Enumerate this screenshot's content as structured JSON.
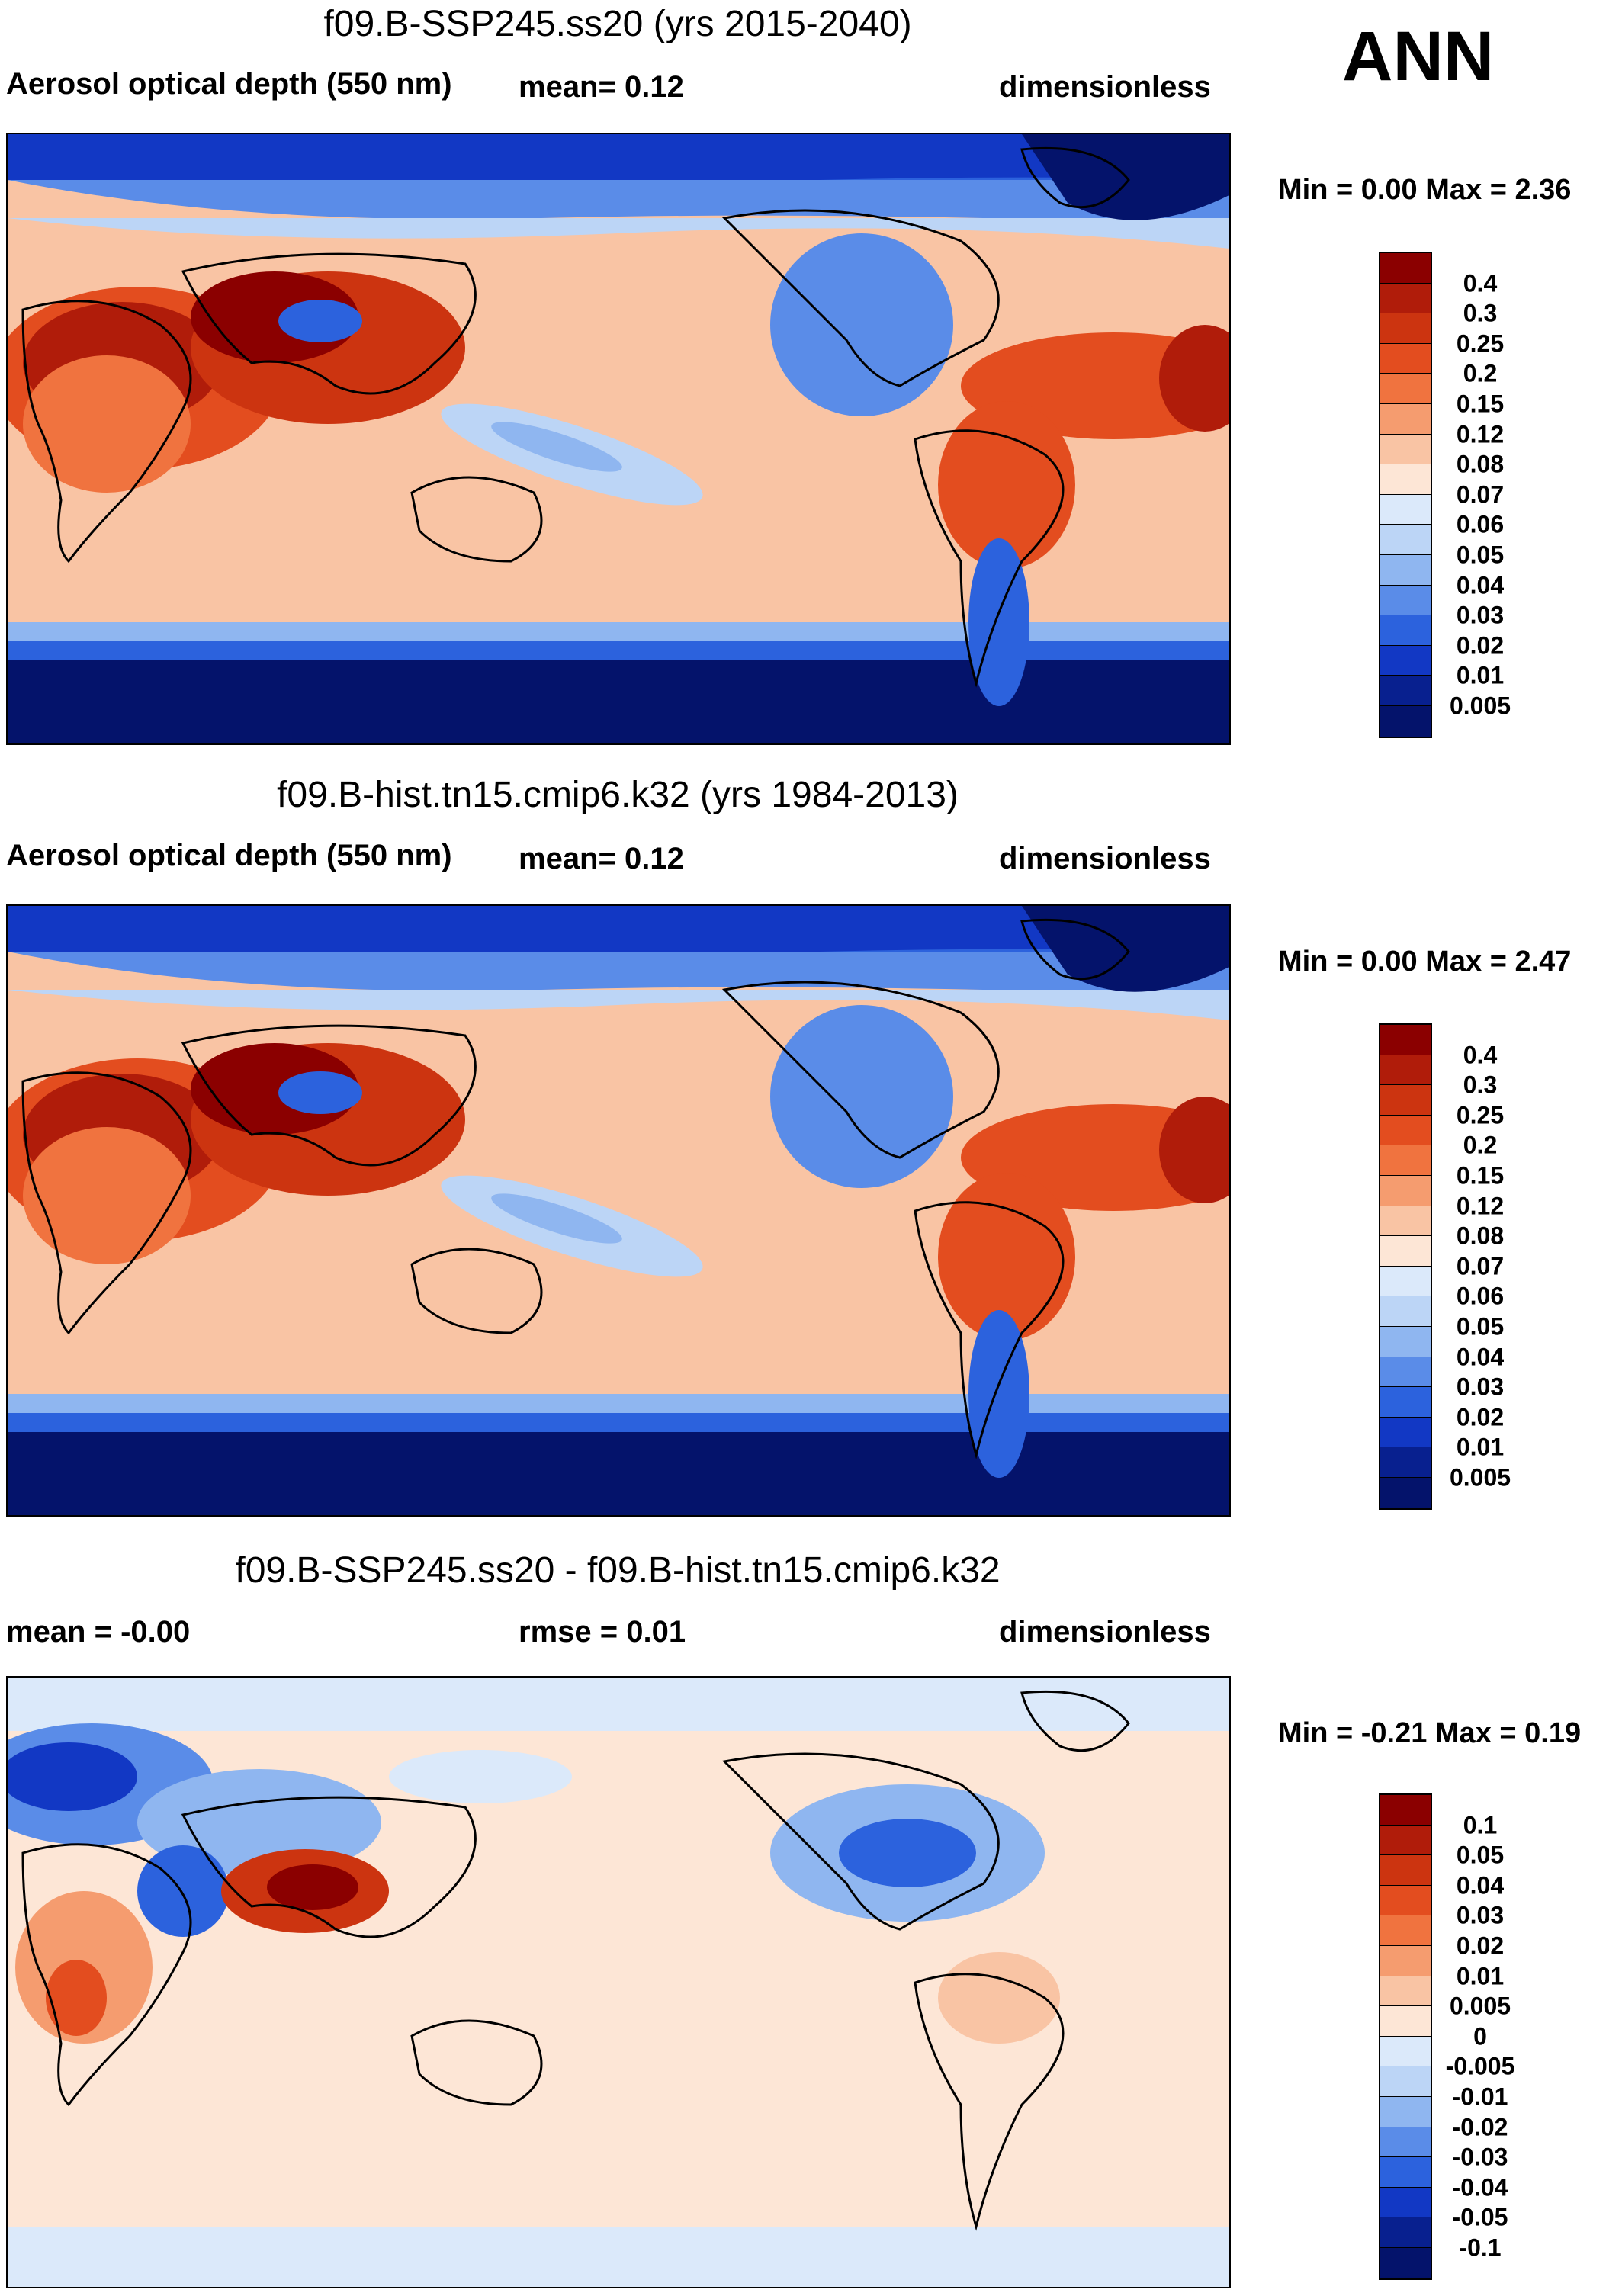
{
  "season": "ANN",
  "panels": [
    {
      "title": "f09.B-SSP245.ss20 (yrs 2015-2040)",
      "left_label": "Aerosol optical depth (550 nm)",
      "center_label": "mean=   0.12",
      "right_label": "dimensionless",
      "minmax": "Min =   0.00 Max =   2.36",
      "colorbar_labels": [
        "0.4",
        "0.3",
        "0.25",
        "0.2",
        "0.15",
        "0.12",
        "0.08",
        "0.07",
        "0.06",
        "0.05",
        "0.04",
        "0.03",
        "0.02",
        "0.01",
        "0.005"
      ],
      "colorbar_colors": [
        "#8b0000",
        "#b01c0a",
        "#cc3410",
        "#e34d1f",
        "#f0733f",
        "#f59c6f",
        "#f9c4a4",
        "#fde6d6",
        "#dbe9fa",
        "#bcd5f6",
        "#8fb6f0",
        "#5a8ce8",
        "#2c62dd",
        "#1238c4",
        "#08208f",
        "#04136b"
      ]
    },
    {
      "title": "f09.B-hist.tn15.cmip6.k32 (yrs 1984-2013)",
      "left_label": "Aerosol optical depth (550 nm)",
      "center_label": "mean=   0.12",
      "right_label": "dimensionless",
      "minmax": "Min =   0.00 Max =   2.47",
      "colorbar_labels": [
        "0.4",
        "0.3",
        "0.25",
        "0.2",
        "0.15",
        "0.12",
        "0.08",
        "0.07",
        "0.06",
        "0.05",
        "0.04",
        "0.03",
        "0.02",
        "0.01",
        "0.005"
      ],
      "colorbar_colors": [
        "#8b0000",
        "#b01c0a",
        "#cc3410",
        "#e34d1f",
        "#f0733f",
        "#f59c6f",
        "#f9c4a4",
        "#fde6d6",
        "#dbe9fa",
        "#bcd5f6",
        "#8fb6f0",
        "#5a8ce8",
        "#2c62dd",
        "#1238c4",
        "#08208f",
        "#04136b"
      ]
    },
    {
      "title": "f09.B-SSP245.ss20 - f09.B-hist.tn15.cmip6.k32",
      "left_label": "mean =  -0.00",
      "center_label": "rmse =   0.01",
      "right_label": "dimensionless",
      "minmax": "Min =  -0.21 Max =   0.19",
      "colorbar_labels": [
        "0.1",
        "0.05",
        "0.04",
        "0.03",
        "0.02",
        "0.01",
        "0.005",
        "0",
        "-0.005",
        "-0.01",
        "-0.02",
        "-0.03",
        "-0.04",
        "-0.05",
        "-0.1"
      ],
      "colorbar_colors": [
        "#8b0000",
        "#b01c0a",
        "#cc3410",
        "#e34d1f",
        "#f0733f",
        "#f59c6f",
        "#f9c4a4",
        "#fde6d6",
        "#dbe9fa",
        "#bcd5f6",
        "#8fb6f0",
        "#5a8ce8",
        "#2c62dd",
        "#1238c4",
        "#08208f",
        "#04136b"
      ]
    }
  ],
  "colors": {
    "ocean_background_panels_1_2": "#f9c4a4",
    "ocean_background_panel_3": "#fde6d6",
    "coastline": "#000000"
  }
}
